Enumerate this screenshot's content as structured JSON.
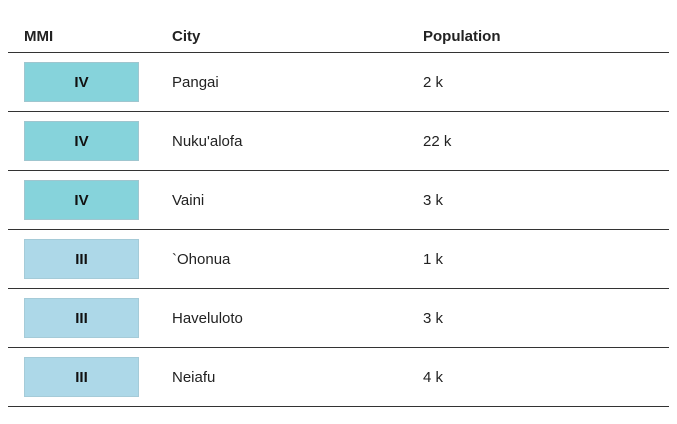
{
  "table": {
    "headers": {
      "mmi": "MMI",
      "city": "City",
      "population": "Population"
    },
    "rows": [
      {
        "mmi": "IV",
        "city": "Pangai",
        "population": "2 k"
      },
      {
        "mmi": "IV",
        "city": "Nuku'alofa",
        "population": "22 k"
      },
      {
        "mmi": "IV",
        "city": "Vaini",
        "population": "3 k"
      },
      {
        "mmi": "III",
        "city": "`Ohonua",
        "population": "1 k"
      },
      {
        "mmi": "III",
        "city": "Haveluloto",
        "population": "3 k"
      },
      {
        "mmi": "III",
        "city": "Neiafu",
        "population": "4 k"
      }
    ]
  },
  "colors": {
    "mmi_iv": "#86d3db",
    "mmi_iii": "#add8e8"
  }
}
